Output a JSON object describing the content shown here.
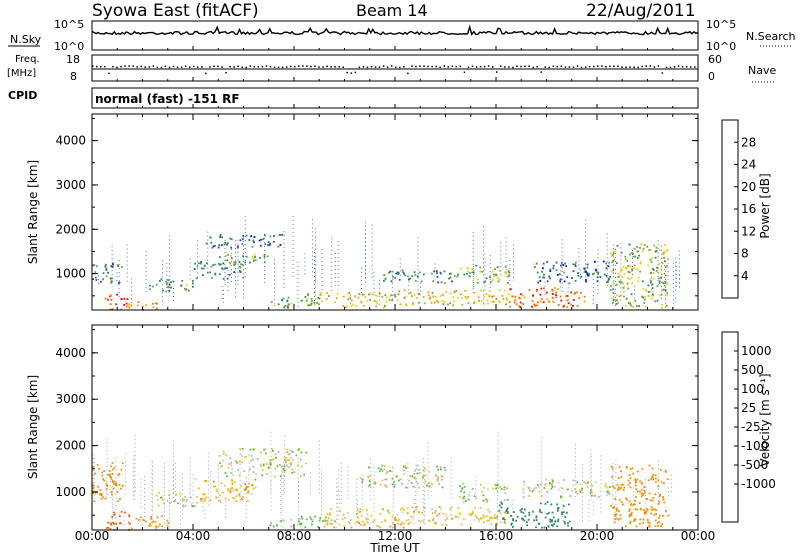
{
  "header": {
    "station": "Syowa East (fitACF)",
    "beam": "Beam 14",
    "date": "22/Aug/2011"
  },
  "panels": {
    "nsky_label": "N.Sky",
    "nsky_ticks": [
      "10^5",
      "10^0"
    ],
    "nsearch_label": "N.Search",
    "nsearch_ticks": [
      "10^5",
      "10^0"
    ],
    "freq_label_line1": "Freq.",
    "freq_label_line2": "[MHz]",
    "freq_ticks": [
      "18",
      "8"
    ],
    "nave_label": "Nave",
    "nave_ticks": [
      "60",
      "0"
    ],
    "cpid_label": "CPID",
    "cpid_text": "normal (fast) -151 RF"
  },
  "colors": {
    "power_scale": [
      "#0000ff",
      "#2a4aa8",
      "#2e8b57",
      "#5ea84a",
      "#e8d20a",
      "#f0a000",
      "#f07000",
      "#ff0000"
    ],
    "velocity_scale": [
      "#ff0000",
      "#f06000",
      "#f09000",
      "#f0c020",
      "#c8c8c8",
      "#b0b0b0",
      "#50c040",
      "#2e8b57",
      "#3060b0",
      "#1040d0"
    ]
  },
  "chart_data": [
    {
      "type": "heatmap",
      "title": "",
      "xlabel": "Time UT",
      "ylabel": "Slant Range [km]",
      "x_ticks": [
        "00:00",
        "04:00",
        "08:00",
        "12:00",
        "16:00",
        "20:00",
        "00:00"
      ],
      "y_ticks": [
        1000,
        2000,
        3000,
        4000
      ],
      "ylim": [
        180,
        4600
      ],
      "colorbar_label": "Power [dB]",
      "colorbar_ticks": [
        4,
        8,
        12,
        16,
        20,
        24,
        28
      ],
      "colorbar_range": [
        0,
        32
      ],
      "patches": [
        {
          "t0": 0.0,
          "t1": 1.2,
          "r0": 800,
          "r1": 1250,
          "v": 10
        },
        {
          "t0": 0.5,
          "t1": 1.5,
          "r0": 200,
          "r1": 550,
          "v": 28
        },
        {
          "t0": 1.4,
          "t1": 2.6,
          "r0": 200,
          "r1": 400,
          "v": 22
        },
        {
          "t0": 2.2,
          "t1": 4.0,
          "r0": 600,
          "r1": 900,
          "v": 12
        },
        {
          "t0": 4.0,
          "t1": 6.0,
          "r0": 900,
          "r1": 1300,
          "v": 10
        },
        {
          "t0": 4.5,
          "t1": 7.5,
          "r0": 1600,
          "r1": 1900,
          "v": 8
        },
        {
          "t0": 5.0,
          "t1": 7.0,
          "r0": 1200,
          "r1": 1450,
          "v": 14
        },
        {
          "t0": 7.0,
          "t1": 9.0,
          "r0": 250,
          "r1": 500,
          "v": 12
        },
        {
          "t0": 8.5,
          "t1": 12.0,
          "r0": 250,
          "r1": 600,
          "v": 18
        },
        {
          "t0": 11.5,
          "t1": 14.5,
          "r0": 800,
          "r1": 1100,
          "v": 10
        },
        {
          "t0": 12.0,
          "t1": 16.5,
          "r0": 300,
          "r1": 650,
          "v": 20
        },
        {
          "t0": 14.5,
          "t1": 16.5,
          "r0": 800,
          "r1": 1200,
          "v": 14
        },
        {
          "t0": 16.5,
          "t1": 19.5,
          "r0": 250,
          "r1": 700,
          "v": 26
        },
        {
          "t0": 17.5,
          "t1": 20.5,
          "r0": 800,
          "r1": 1300,
          "v": 8
        },
        {
          "t0": 20.5,
          "t1": 22.8,
          "r0": 250,
          "r1": 1700,
          "v": 16
        }
      ]
    },
    {
      "type": "heatmap",
      "title": "",
      "xlabel": "Time UT",
      "ylabel": "Slant Range [km]",
      "x_ticks": [
        "00:00",
        "04:00",
        "08:00",
        "12:00",
        "16:00",
        "20:00",
        "00:00"
      ],
      "y_ticks": [
        1000,
        2000,
        3000,
        4000
      ],
      "ylim": [
        180,
        4600
      ],
      "colorbar_label": "Velocity [m s⁻¹]",
      "colorbar_ticks": [
        1000,
        500,
        100,
        25,
        -25,
        -100,
        -500,
        -1000
      ],
      "patches": [
        {
          "t0": 0.0,
          "t1": 1.2,
          "r0": 800,
          "r1": 1700,
          "v": -300
        },
        {
          "t0": 0.5,
          "t1": 1.5,
          "r0": 200,
          "r1": 600,
          "v": -700
        },
        {
          "t0": 1.4,
          "t1": 3.0,
          "r0": 200,
          "r1": 500,
          "v": -150
        },
        {
          "t0": 2.5,
          "t1": 4.5,
          "r0": 700,
          "r1": 1000,
          "v": 0
        },
        {
          "t0": 4.0,
          "t1": 6.5,
          "r0": 800,
          "r1": 1300,
          "v": -80
        },
        {
          "t0": 5.0,
          "t1": 8.5,
          "r0": 1350,
          "r1": 1950,
          "v": 0
        },
        {
          "t0": 7.0,
          "t1": 9.5,
          "r0": 250,
          "r1": 500,
          "v": 40
        },
        {
          "t0": 9.0,
          "t1": 12.5,
          "r0": 250,
          "r1": 650,
          "v": -60
        },
        {
          "t0": 10.5,
          "t1": 14.0,
          "r0": 1100,
          "r1": 1600,
          "v": 0
        },
        {
          "t0": 12.0,
          "t1": 16.5,
          "r0": 300,
          "r1": 700,
          "v": -60
        },
        {
          "t0": 14.5,
          "t1": 16.5,
          "r0": 800,
          "r1": 1200,
          "v": 10
        },
        {
          "t0": 16.0,
          "t1": 19.0,
          "r0": 250,
          "r1": 800,
          "v": 200
        },
        {
          "t0": 17.0,
          "t1": 20.5,
          "r0": 900,
          "r1": 1300,
          "v": 0
        },
        {
          "t0": 20.5,
          "t1": 22.8,
          "r0": 250,
          "r1": 1600,
          "v": -400
        }
      ]
    }
  ]
}
